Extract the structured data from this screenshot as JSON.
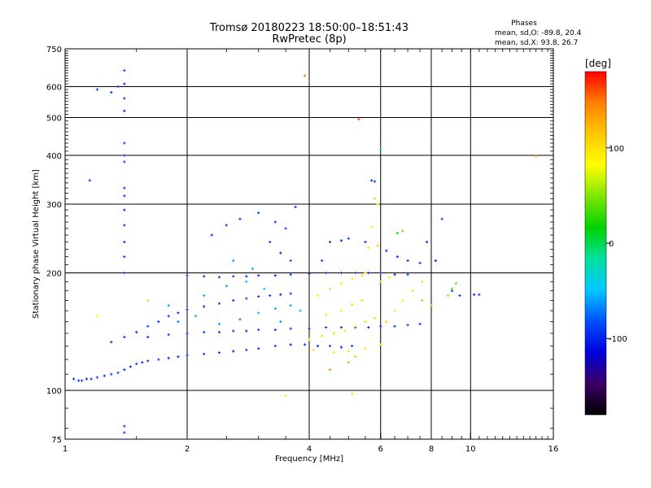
{
  "header": {
    "title": "Tromsø 20180223 18:50:00–18:51:43",
    "subtitle": "RwPretec (8p)"
  },
  "info": {
    "heading": "Phases",
    "line_o": "mean, sd,O: -89.8, 20.4",
    "line_x": "mean, sd,X:  93.8, 26.7"
  },
  "colorbar": {
    "unit": "[deg]",
    "ticks": [
      {
        "label": "100",
        "value": 100
      },
      {
        "label": "0",
        "value": 0
      },
      {
        "label": "-100",
        "value": -100
      }
    ],
    "min": -180,
    "max": 180,
    "stops": [
      "#000000",
      "#3b0064",
      "#0000dc",
      "#0050ff",
      "#00c8ff",
      "#00e0a0",
      "#00d200",
      "#7fe600",
      "#ffff00",
      "#ffc800",
      "#ff8000",
      "#ff0000"
    ]
  },
  "chart_data": {
    "type": "scatter",
    "xlabel": "Frequency [MHz]",
    "ylabel": "Stationary phase Virtual Height [km]",
    "xscale": "log",
    "yscale": "log",
    "xlim": [
      1,
      16
    ],
    "ylim": [
      75,
      750
    ],
    "xticks": [
      {
        "label": "1",
        "value": 1
      },
      {
        "label": "2",
        "value": 2
      },
      {
        "label": "4",
        "value": 4
      },
      {
        "label": "6",
        "value": 6
      },
      {
        "label": "8",
        "value": 8
      },
      {
        "label": "10",
        "value": 10
      },
      {
        "label": "16",
        "value": 16
      }
    ],
    "yticks": [
      {
        "label": "750",
        "value": 750
      },
      {
        "label": "600",
        "value": 600
      },
      {
        "label": "500",
        "value": 500
      },
      {
        "label": "400",
        "value": 400
      },
      {
        "label": "300",
        "value": 300
      },
      {
        "label": "200",
        "value": 200
      },
      {
        "label": "100",
        "value": 100
      },
      {
        "label": "75",
        "value": 75
      }
    ],
    "grid": true,
    "series": [
      {
        "points": [
          [
            1.05,
            107,
            -95
          ],
          [
            1.08,
            106,
            -90
          ],
          [
            1.1,
            106,
            -85
          ],
          [
            1.13,
            107,
            -100
          ],
          [
            1.16,
            107,
            -92
          ],
          [
            1.2,
            108,
            -88
          ],
          [
            1.25,
            109,
            -95
          ],
          [
            1.3,
            110,
            -90
          ],
          [
            1.35,
            111,
            -85
          ],
          [
            1.4,
            113,
            -95
          ],
          [
            1.45,
            115,
            -100
          ],
          [
            1.5,
            117,
            -90
          ],
          [
            1.55,
            118,
            -95
          ],
          [
            1.6,
            119,
            -92
          ],
          [
            1.7,
            120,
            -88
          ],
          [
            1.8,
            121,
            -95
          ],
          [
            1.9,
            122,
            -100
          ],
          [
            2.0,
            123,
            -92
          ],
          [
            2.2,
            124,
            -95
          ],
          [
            2.4,
            125,
            -90
          ],
          [
            2.6,
            126,
            -98
          ],
          [
            2.8,
            127,
            -92
          ],
          [
            3.0,
            128,
            -95
          ],
          [
            3.3,
            130,
            -90
          ],
          [
            3.6,
            131,
            -100
          ],
          [
            3.9,
            131,
            -92
          ],
          [
            4.2,
            130,
            -95
          ],
          [
            4.5,
            130,
            -90
          ],
          [
            4.8,
            129,
            -98
          ],
          [
            5.1,
            130,
            -92
          ]
        ]
      },
      {
        "points": [
          [
            1.3,
            133,
            -95
          ],
          [
            1.4,
            137,
            -90
          ],
          [
            1.5,
            141,
            -95
          ],
          [
            1.6,
            146,
            -88
          ],
          [
            1.7,
            150,
            -95
          ],
          [
            1.8,
            155,
            -90
          ],
          [
            1.9,
            158,
            -100
          ],
          [
            2.0,
            161,
            -92
          ],
          [
            2.2,
            164,
            -95
          ],
          [
            2.4,
            167,
            -90
          ],
          [
            2.6,
            170,
            -95
          ],
          [
            2.8,
            172,
            -88
          ],
          [
            3.0,
            174,
            -95
          ],
          [
            3.2,
            175,
            -90
          ],
          [
            3.4,
            176,
            -100
          ],
          [
            3.6,
            177,
            -92
          ]
        ]
      },
      {
        "points": [
          [
            1.6,
            137,
            -95
          ],
          [
            1.8,
            139,
            -90
          ],
          [
            2.0,
            140,
            -95
          ],
          [
            2.2,
            141,
            -88
          ],
          [
            2.4,
            141,
            -95
          ],
          [
            2.6,
            142,
            -90
          ],
          [
            2.8,
            142,
            -100
          ],
          [
            3.0,
            143,
            -92
          ],
          [
            3.3,
            143,
            -95
          ],
          [
            3.6,
            144,
            -90
          ],
          [
            4.0,
            144,
            -95
          ],
          [
            4.4,
            145,
            -88
          ],
          [
            4.8,
            145,
            -95
          ],
          [
            5.2,
            145,
            -90
          ],
          [
            5.6,
            145,
            -100
          ],
          [
            6.0,
            146,
            -92
          ],
          [
            6.5,
            146,
            -95
          ],
          [
            7.0,
            147,
            -90
          ],
          [
            7.5,
            148,
            -95
          ]
        ]
      },
      {
        "points": [
          [
            2.0,
            197,
            -95
          ],
          [
            2.2,
            196,
            -90
          ],
          [
            2.4,
            195,
            -95
          ],
          [
            2.6,
            196,
            -88
          ],
          [
            2.8,
            196,
            -95
          ],
          [
            3.0,
            197,
            -90
          ],
          [
            3.3,
            197,
            -100
          ],
          [
            3.6,
            198,
            -92
          ],
          [
            4.0,
            199,
            -95
          ],
          [
            4.4,
            200,
            -90
          ],
          [
            4.8,
            200,
            -95
          ],
          [
            5.2,
            200,
            -88
          ],
          [
            5.6,
            200,
            -95
          ],
          [
            6.0,
            200,
            -90
          ],
          [
            6.5,
            198,
            -100
          ],
          [
            7.0,
            198,
            -92
          ]
        ]
      },
      {
        "points": [
          [
            1.4,
            660,
            -90
          ],
          [
            1.4,
            610,
            -95
          ],
          [
            1.4,
            560,
            -92
          ],
          [
            1.4,
            520,
            -100
          ],
          [
            1.4,
            430,
            -90
          ],
          [
            1.4,
            400,
            -95
          ],
          [
            1.4,
            385,
            -88
          ],
          [
            1.4,
            330,
            -95
          ],
          [
            1.4,
            315,
            -90
          ],
          [
            1.4,
            290,
            -100
          ],
          [
            1.4,
            265,
            -92
          ],
          [
            1.4,
            240,
            -95
          ],
          [
            1.4,
            220,
            -90
          ],
          [
            1.4,
            200,
            -95
          ],
          [
            1.4,
            81,
            -95
          ],
          [
            1.4,
            78,
            -90
          ],
          [
            1.35,
            600,
            -95
          ],
          [
            1.2,
            590,
            -88
          ],
          [
            1.3,
            580,
            -95
          ],
          [
            1.15,
            345,
            -90
          ]
        ]
      },
      {
        "points": [
          [
            2.7,
            275,
            -95
          ],
          [
            3.0,
            285,
            -90
          ],
          [
            3.3,
            270,
            -95
          ],
          [
            3.5,
            260,
            -88
          ],
          [
            3.7,
            295,
            -95
          ],
          [
            3.2,
            240,
            -90
          ],
          [
            3.4,
            225,
            -100
          ],
          [
            3.6,
            215,
            -92
          ],
          [
            2.3,
            250,
            -95
          ],
          [
            2.5,
            265,
            -90
          ],
          [
            4.5,
            240,
            -95
          ],
          [
            4.8,
            242,
            -100
          ],
          [
            5.0,
            245,
            -92
          ],
          [
            5.5,
            240,
            -95
          ],
          [
            4.3,
            215,
            -90
          ],
          [
            5.7,
            345,
            -95
          ],
          [
            5.8,
            343,
            -90
          ],
          [
            6.2,
            228,
            -95
          ],
          [
            6.6,
            220,
            -88
          ],
          [
            7.0,
            215,
            -95
          ],
          [
            7.5,
            212,
            -90
          ],
          [
            8.2,
            215,
            -100
          ],
          [
            7.8,
            240,
            -92
          ],
          [
            8.5,
            275,
            -95
          ],
          [
            9.0,
            180,
            -90
          ],
          [
            9.4,
            175,
            -95
          ],
          [
            10.2,
            176,
            -98
          ],
          [
            10.5,
            176,
            -92
          ]
        ]
      },
      {
        "points": [
          [
            5.3,
            495,
            160
          ],
          [
            3.9,
            640,
            150
          ],
          [
            6.0,
            415,
            -40
          ],
          [
            6.6,
            253,
            20
          ],
          [
            6.8,
            256,
            40
          ],
          [
            9.0,
            182,
            30
          ],
          [
            9.2,
            188,
            40
          ],
          [
            8.8,
            175,
            55
          ],
          [
            5.8,
            310,
            60
          ],
          [
            5.9,
            300,
            90
          ],
          [
            1.2,
            155,
            85
          ],
          [
            1.6,
            170,
            65
          ],
          [
            5.2,
            122,
            120
          ],
          [
            4.5,
            113,
            140
          ],
          [
            5.0,
            118,
            130
          ],
          [
            7.6,
            170,
            50
          ],
          [
            8.0,
            165,
            40
          ],
          [
            3.5,
            97,
            70
          ],
          [
            5.1,
            98,
            110
          ],
          [
            14.5,
            398,
            115
          ],
          [
            5.5,
            200,
            100
          ],
          [
            5.6,
            232,
            100
          ]
        ]
      },
      {
        "points": [
          [
            4.0,
            135,
            100
          ],
          [
            4.3,
            138,
            95
          ],
          [
            4.6,
            140,
            110
          ],
          [
            4.9,
            142,
            100
          ],
          [
            5.2,
            146,
            95
          ],
          [
            5.5,
            150,
            105
          ],
          [
            5.8,
            153,
            100
          ],
          [
            4.4,
            156,
            100
          ],
          [
            4.8,
            160,
            95
          ],
          [
            5.1,
            166,
            110
          ],
          [
            5.4,
            170,
            100
          ],
          [
            4.2,
            175,
            95
          ],
          [
            4.5,
            182,
            105
          ],
          [
            4.8,
            188,
            100
          ],
          [
            5.1,
            193,
            95
          ],
          [
            5.4,
            197,
            110
          ],
          [
            4.1,
            127,
            100
          ],
          [
            4.6,
            125,
            95
          ],
          [
            5.0,
            126,
            105
          ],
          [
            5.5,
            128,
            100
          ],
          [
            6.0,
            131,
            95
          ],
          [
            6.2,
            150,
            110
          ],
          [
            6.5,
            160,
            100
          ],
          [
            6.8,
            170,
            95
          ],
          [
            7.2,
            180,
            105
          ],
          [
            7.6,
            190,
            100
          ],
          [
            5.7,
            262,
            95
          ],
          [
            5.9,
            235,
            105
          ],
          [
            6.0,
            190,
            100
          ],
          [
            6.3,
            195,
            95
          ]
        ]
      },
      {
        "points": [
          [
            1.9,
            150,
            -70
          ],
          [
            2.1,
            155,
            -55
          ],
          [
            2.4,
            148,
            -60
          ],
          [
            2.7,
            152,
            -65
          ],
          [
            3.0,
            158,
            -50
          ],
          [
            3.3,
            162,
            -58
          ],
          [
            3.6,
            165,
            -62
          ],
          [
            3.8,
            160,
            -55
          ],
          [
            2.2,
            175,
            -60
          ],
          [
            2.5,
            185,
            -65
          ],
          [
            2.8,
            190,
            -55
          ],
          [
            3.1,
            182,
            -50
          ],
          [
            2.6,
            215,
            -60
          ],
          [
            2.9,
            205,
            -58
          ],
          [
            3.4,
            150,
            -66
          ],
          [
            1.8,
            165,
            -62
          ]
        ]
      }
    ]
  }
}
